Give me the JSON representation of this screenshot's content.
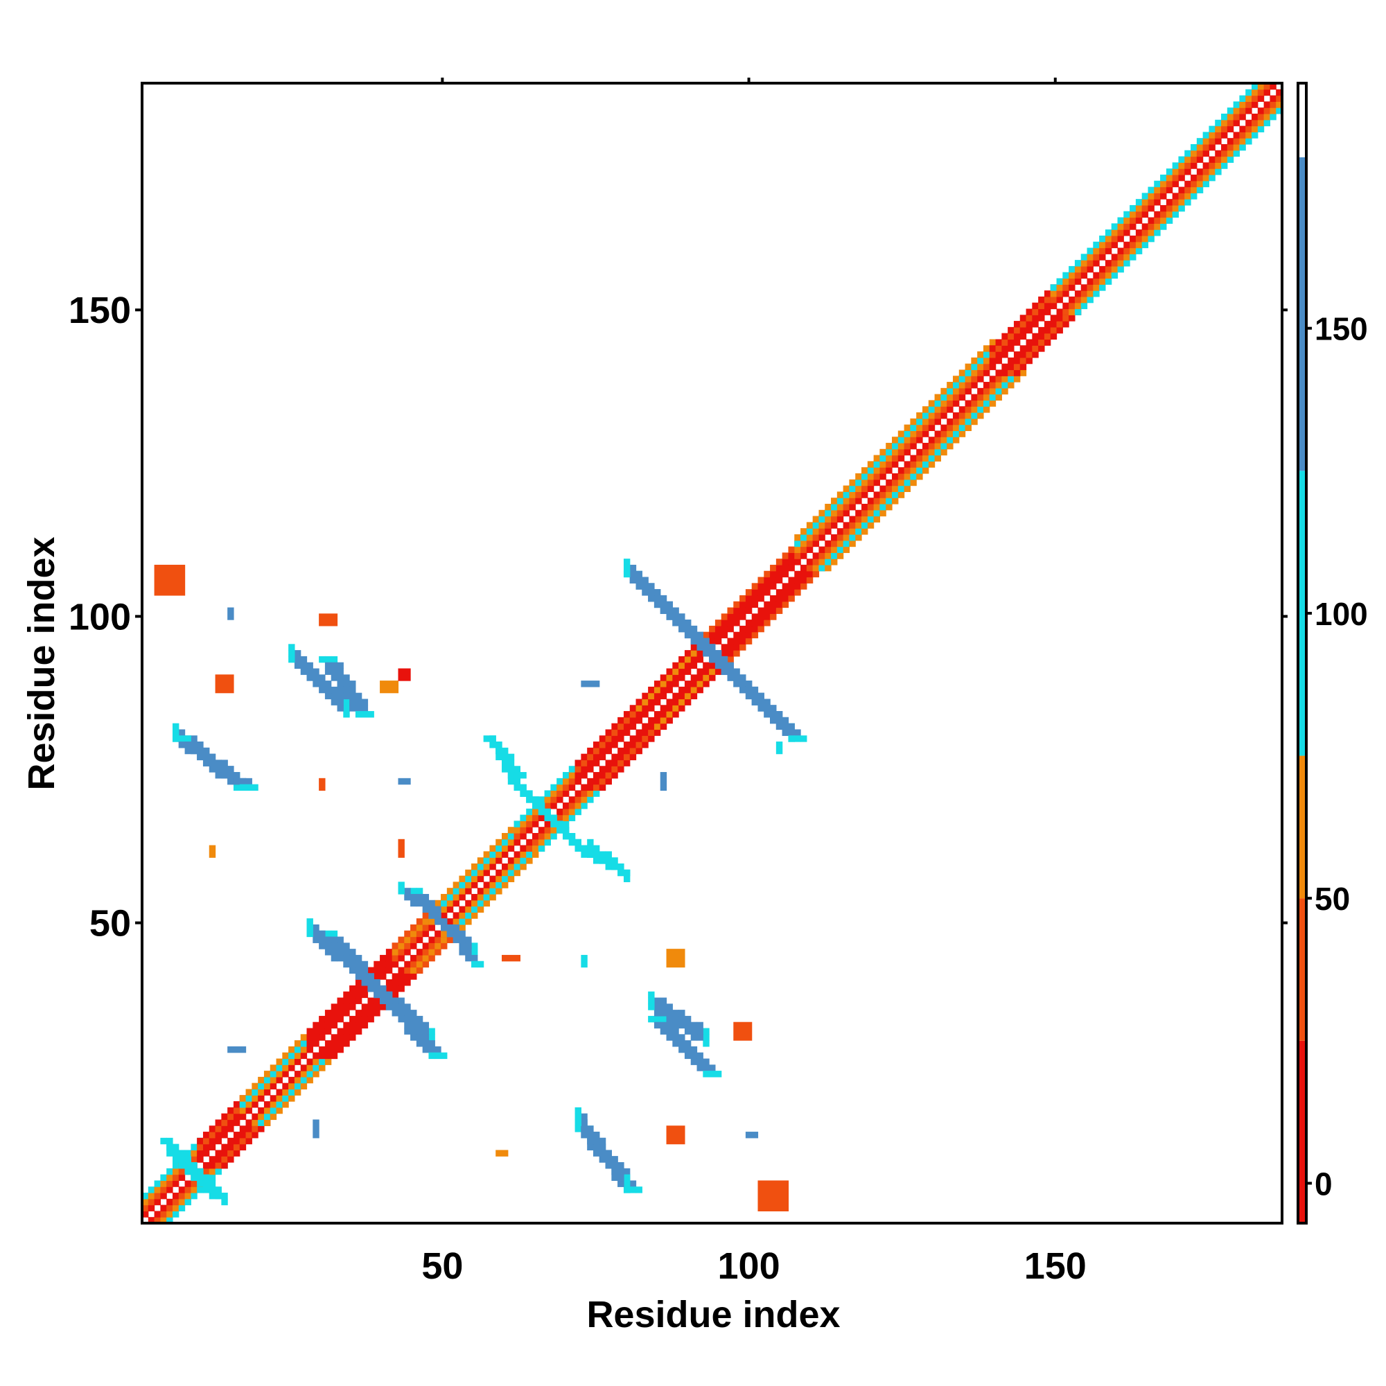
{
  "chart_data": {
    "type": "heatmap",
    "title": "",
    "xlabel": "Residue index",
    "ylabel": "Residue index",
    "xlim": [
      1,
      187
    ],
    "ylim": [
      1,
      187
    ],
    "x_ticks": [
      50,
      100,
      150
    ],
    "y_ticks": [
      50,
      100,
      150
    ],
    "x_tick_labels": [
      "50",
      "100",
      "150"
    ],
    "y_tick_labels": [
      "50",
      "100",
      "150"
    ],
    "grid": false,
    "colorbar": {
      "ticks": [
        0,
        50,
        100,
        150
      ],
      "tick_labels": [
        "0",
        "50",
        "100",
        "150"
      ],
      "range": [
        -7,
        193
      ],
      "bands": [
        {
          "from": -7,
          "to": 25,
          "color": "#e8120c"
        },
        {
          "from": 25,
          "to": 50,
          "color": "#f05010"
        },
        {
          "from": 50,
          "to": 75,
          "color": "#f08a0c"
        },
        {
          "from": 75,
          "to": 125,
          "color": "#16dce6"
        },
        {
          "from": 125,
          "to": 180,
          "color": "#4a8cc6"
        },
        {
          "from": 180,
          "to": 193,
          "color": "#ffffff"
        }
      ]
    },
    "colors": {
      "red": "#e8120c",
      "red_orange": "#f05010",
      "orange": "#f08a0c",
      "cyan": "#16dce6",
      "steel_blue": "#4a8cc6"
    },
    "diagonal_segments": [
      {
        "from": 1,
        "to": 10,
        "offsets": {
          "1": "red",
          "2": "red_orange",
          "3": "orange",
          "4": "cyan"
        }
      },
      {
        "from": 10,
        "to": 17,
        "offsets": {
          "1": "red",
          "2": "red",
          "3": "red_orange",
          "4": "red"
        }
      },
      {
        "from": 17,
        "to": 28,
        "offsets": {
          "1": "red",
          "2": "orange",
          "3": "cyan",
          "4": "orange"
        }
      },
      {
        "from": 28,
        "to": 42,
        "offsets": {
          "1": "red",
          "2": "red",
          "3": "red",
          "4": "red"
        }
      },
      {
        "from": 42,
        "to": 48,
        "offsets": {
          "1": "red",
          "2": "red_orange",
          "3": "orange",
          "4": "red_orange"
        }
      },
      {
        "from": 48,
        "to": 62,
        "offsets": {
          "1": "red",
          "2": "orange",
          "3": "cyan",
          "4": "orange"
        }
      },
      {
        "from": 62,
        "to": 72,
        "offsets": {
          "1": "red",
          "2": "red_orange",
          "3": "orange",
          "4": "cyan"
        }
      },
      {
        "from": 72,
        "to": 82,
        "offsets": {
          "1": "red",
          "2": "red",
          "3": "red_orange",
          "4": "red"
        }
      },
      {
        "from": 82,
        "to": 92,
        "offsets": {
          "1": "red",
          "2": "red",
          "3": "orange",
          "4": "red"
        }
      },
      {
        "from": 92,
        "to": 108,
        "offsets": {
          "1": "red",
          "2": "red",
          "3": "red",
          "4": "red_orange"
        }
      },
      {
        "from": 108,
        "to": 140,
        "offsets": {
          "1": "red",
          "2": "red_orange",
          "3": "orange",
          "4": "cyan",
          "5": "orange"
        }
      },
      {
        "from": 140,
        "to": 150,
        "offsets": {
          "1": "red",
          "2": "red",
          "3": "red_orange",
          "4": "red"
        }
      },
      {
        "from": 150,
        "to": 187,
        "offsets": {
          "1": "red",
          "2": "red_orange",
          "3": "orange",
          "4": "cyan"
        }
      }
    ],
    "antiparallel_strands": [
      {
        "x_start": 30,
        "y_start": 48,
        "x_end": 48,
        "y_end": 28,
        "color": "steel_blue",
        "width": 3
      },
      {
        "x_start": 80,
        "y_start": 107,
        "x_end": 107,
        "y_end": 80,
        "color": "steel_blue",
        "width": 3
      },
      {
        "x_start": 72,
        "y_start": 16,
        "x_end": 80,
        "y_end": 6,
        "color": "steel_blue",
        "width": 3
      },
      {
        "x_start": 84,
        "y_start": 34,
        "x_end": 93,
        "y_end": 25,
        "color": "steel_blue",
        "width": 3
      },
      {
        "x_start": 30,
        "y_start": 93,
        "x_end": 36,
        "y_end": 84,
        "color": "steel_blue",
        "width": 3
      },
      {
        "x_start": 6,
        "y_start": 80,
        "x_end": 17,
        "y_end": 72,
        "color": "steel_blue",
        "width": 3
      },
      {
        "x_start": 57,
        "y_start": 80,
        "x_end": 62,
        "y_end": 74,
        "color": "cyan",
        "width": 2
      },
      {
        "x_start": 72,
        "y_start": 62,
        "x_end": 79,
        "y_end": 58,
        "color": "cyan",
        "width": 2
      },
      {
        "x_start": 45,
        "y_start": 55,
        "x_end": 55,
        "y_end": 43,
        "color": "steel_blue",
        "width": 2
      },
      {
        "x_start": 62,
        "y_start": 72,
        "x_end": 72,
        "y_end": 62,
        "color": "cyan",
        "width": 2
      },
      {
        "x_start": 4,
        "y_start": 14,
        "x_end": 12,
        "y_end": 5,
        "color": "cyan",
        "width": 2
      }
    ],
    "spot_contacts": [
      {
        "x": 3,
        "y": 104,
        "w": 5,
        "h": 5,
        "color": "red_orange"
      },
      {
        "x": 102,
        "y": 3,
        "w": 5,
        "h": 5,
        "color": "red_orange"
      },
      {
        "x": 13,
        "y": 88,
        "w": 3,
        "h": 3,
        "color": "red_orange"
      },
      {
        "x": 40,
        "y": 88,
        "w": 3,
        "h": 2,
        "color": "orange"
      },
      {
        "x": 43,
        "y": 90,
        "w": 2,
        "h": 2,
        "color": "red"
      },
      {
        "x": 30,
        "y": 99,
        "w": 3,
        "h": 2,
        "color": "red_orange"
      },
      {
        "x": 60,
        "y": 44,
        "w": 3,
        "h": 1,
        "color": "red_orange"
      },
      {
        "x": 87,
        "y": 43,
        "w": 3,
        "h": 3,
        "color": "orange"
      },
      {
        "x": 98,
        "y": 31,
        "w": 3,
        "h": 3,
        "color": "red_orange"
      },
      {
        "x": 87,
        "y": 14,
        "w": 3,
        "h": 3,
        "color": "red_orange"
      },
      {
        "x": 59,
        "y": 12,
        "w": 2,
        "h": 1,
        "color": "orange"
      },
      {
        "x": 43,
        "y": 61,
        "w": 1,
        "h": 3,
        "color": "red_orange"
      },
      {
        "x": 12,
        "y": 61,
        "w": 1,
        "h": 2,
        "color": "orange"
      },
      {
        "x": 30,
        "y": 72,
        "w": 1,
        "h": 2,
        "color": "red_orange"
      },
      {
        "x": 73,
        "y": 89,
        "w": 3,
        "h": 1,
        "color": "steel_blue"
      },
      {
        "x": 43,
        "y": 73,
        "w": 2,
        "h": 1,
        "color": "steel_blue"
      },
      {
        "x": 86,
        "y": 72,
        "w": 1,
        "h": 3,
        "color": "steel_blue"
      },
      {
        "x": 15,
        "y": 100,
        "w": 1,
        "h": 2,
        "color": "steel_blue"
      },
      {
        "x": 15,
        "y": 29,
        "w": 3,
        "h": 1,
        "color": "steel_blue"
      },
      {
        "x": 29,
        "y": 15,
        "w": 1,
        "h": 3,
        "color": "steel_blue"
      },
      {
        "x": 100,
        "y": 15,
        "w": 2,
        "h": 1,
        "color": "steel_blue"
      },
      {
        "x": 73,
        "y": 43,
        "w": 1,
        "h": 2,
        "color": "cyan"
      },
      {
        "x": 105,
        "y": 78,
        "w": 1,
        "h": 2,
        "color": "cyan"
      }
    ]
  }
}
